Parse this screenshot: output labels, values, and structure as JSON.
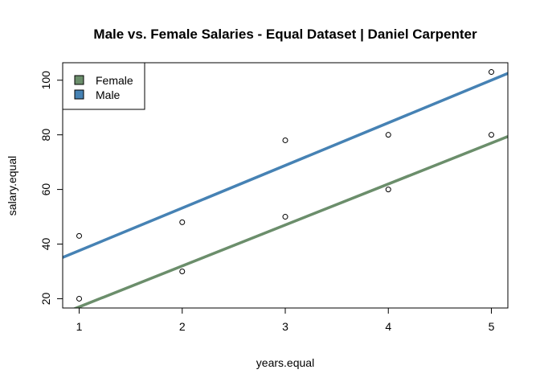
{
  "chart_data": {
    "type": "scatter",
    "title": "Male vs. Female Salaries - Equal Dataset | Daniel Carpenter",
    "xlabel": "years.equal",
    "ylabel": "salary.equal",
    "xlim": [
      0.84,
      5.16
    ],
    "ylim": [
      16.6,
      106.4
    ],
    "x_ticks": [
      1,
      2,
      3,
      4,
      5
    ],
    "y_ticks": [
      20,
      40,
      60,
      80,
      100
    ],
    "grid": false,
    "legend_position": "top-left",
    "series": [
      {
        "name": "Female",
        "color": "#6B8E6B",
        "points": [
          {
            "x": 1,
            "y": 20
          },
          {
            "x": 2,
            "y": 30
          },
          {
            "x": 3,
            "y": 50
          },
          {
            "x": 4,
            "y": 60
          },
          {
            "x": 5,
            "y": 80
          }
        ],
        "fit_line": {
          "intercept": 2,
          "slope": 15
        }
      },
      {
        "name": "Male",
        "color": "#4682B4",
        "points": [
          {
            "x": 1,
            "y": 43
          },
          {
            "x": 2,
            "y": 48
          },
          {
            "x": 3,
            "y": 78
          },
          {
            "x": 4,
            "y": 80
          },
          {
            "x": 5,
            "y": 103
          }
        ],
        "fit_line": {
          "intercept": 22,
          "slope": 15.6
        }
      }
    ]
  }
}
